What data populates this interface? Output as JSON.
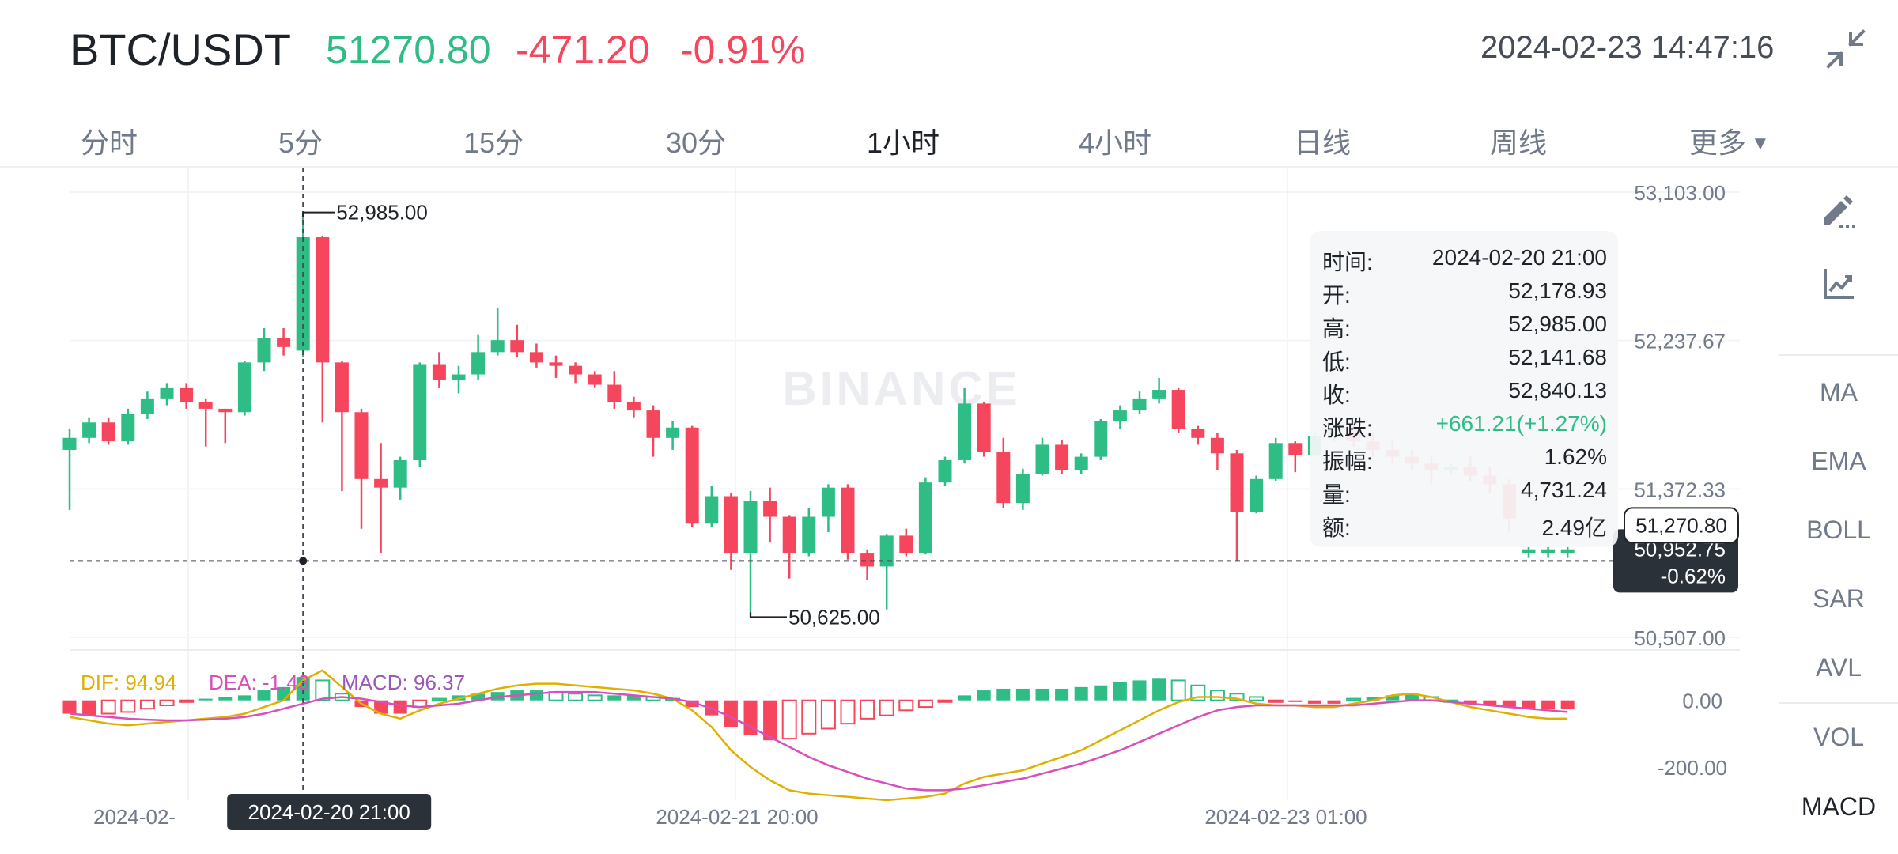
{
  "header": {
    "pair": "BTC/USDT",
    "last_price": "51270.80",
    "change": "-471.20",
    "change_pct": "-0.91%",
    "datetime": "2024-02-23 14:47:16",
    "collapse_icon": "collapse-arrows-icon"
  },
  "tabs": [
    "分时",
    "5分",
    "15分",
    "30分",
    "1小时",
    "4小时",
    "日线",
    "周线",
    "更多"
  ],
  "active_tab": "1小时",
  "side_panel": {
    "tools": [
      "pencil-ruler-icon",
      "indicator-chart-icon"
    ],
    "main_indicators": [
      "MA",
      "EMA",
      "BOLL",
      "SAR",
      "AVL"
    ],
    "sub_indicators": [
      "VOL",
      "MACD"
    ],
    "active_sub": "MACD"
  },
  "tooltip": {
    "rows": [
      {
        "k": "时间:",
        "v": "2024-02-20 21:00"
      },
      {
        "k": "开:",
        "v": "52,178.93"
      },
      {
        "k": "高:",
        "v": "52,985.00"
      },
      {
        "k": "低:",
        "v": "52,141.68"
      },
      {
        "k": "收:",
        "v": "52,840.13"
      },
      {
        "k": "涨跌:",
        "v": "+661.21(+1.27%)"
      },
      {
        "k": "振幅:",
        "v": "1.62%"
      },
      {
        "k": "量:",
        "v": "4,731.24"
      },
      {
        "k": "额:",
        "v": "2.49亿"
      }
    ]
  },
  "chart_data": {
    "type": "candlestick",
    "watermark": "BINANCE",
    "colors": {
      "up": "#2ebd85",
      "down": "#f6465d",
      "dif": "#e0b000",
      "dea": "#d64fbb",
      "macd_label": "#9b59b6"
    },
    "price_axis": {
      "ticks": [
        "53,103.00",
        "52,237.67",
        "51,372.33",
        "50,507.00"
      ],
      "range": [
        50507,
        53103
      ]
    },
    "time_axis": {
      "labels": [
        "2024-02-",
        "2024-02-21 20:00",
        "2024-02-23 01:00"
      ]
    },
    "crosshair": {
      "time_label": "2024-02-20 21:00",
      "price_label": "50,952.75",
      "pct_label": "-0.62%",
      "price": 50952.75
    },
    "last_price_label": "51,270.80",
    "last_price": 51270.8,
    "high_marker": {
      "label": "52,985.00",
      "price": 52985
    },
    "low_marker": {
      "label": "50,625.00",
      "price": 50625
    },
    "candles": [
      [
        51600,
        51670,
        51250,
        51720
      ],
      [
        51670,
        51760,
        51640,
        51790
      ],
      [
        51760,
        51650,
        51630,
        51790
      ],
      [
        51650,
        51810,
        51630,
        51840
      ],
      [
        51810,
        51900,
        51780,
        51940
      ],
      [
        51900,
        51960,
        51860,
        51990
      ],
      [
        51960,
        51880,
        51840,
        51990
      ],
      [
        51880,
        51840,
        51620,
        51900
      ],
      [
        51840,
        51820,
        51640,
        51840
      ],
      [
        51820,
        52110,
        51800,
        52120
      ],
      [
        52110,
        52250,
        52060,
        52310
      ],
      [
        52250,
        52200,
        52150,
        52310
      ],
      [
        52178.93,
        52840.13,
        52141.68,
        52985
      ],
      [
        52840,
        52110,
        51760,
        52850
      ],
      [
        52110,
        51820,
        51360,
        52120
      ],
      [
        51820,
        51430,
        51140,
        51840
      ],
      [
        51430,
        51380,
        51000,
        51640
      ],
      [
        51380,
        51540,
        51310,
        51560
      ],
      [
        51540,
        52100,
        51500,
        52110
      ],
      [
        52100,
        52010,
        51960,
        52170
      ],
      [
        52010,
        52040,
        51930,
        52090
      ],
      [
        52040,
        52170,
        52010,
        52270
      ],
      [
        52170,
        52240,
        52150,
        52430
      ],
      [
        52240,
        52170,
        52140,
        52330
      ],
      [
        52170,
        52110,
        52080,
        52220
      ],
      [
        52110,
        52090,
        52020,
        52150
      ],
      [
        52090,
        52040,
        51990,
        52110
      ],
      [
        52040,
        51980,
        51960,
        52060
      ],
      [
        51980,
        51880,
        51840,
        52060
      ],
      [
        51880,
        51830,
        51790,
        51910
      ],
      [
        51830,
        51670,
        51560,
        51860
      ],
      [
        51670,
        51730,
        51600,
        51770
      ],
      [
        51730,
        51170,
        51150,
        51740
      ],
      [
        51170,
        51330,
        51150,
        51390
      ],
      [
        51330,
        51000,
        50900,
        51350
      ],
      [
        51000,
        51300,
        50625,
        51360
      ],
      [
        51300,
        51210,
        51060,
        51380
      ],
      [
        51210,
        51000,
        50850,
        51220
      ],
      [
        51000,
        51210,
        50980,
        51260
      ],
      [
        51210,
        51380,
        51120,
        51400
      ],
      [
        51380,
        51000,
        50960,
        51400
      ],
      [
        51000,
        50920,
        50840,
        51020
      ],
      [
        50920,
        51100,
        50670,
        51110
      ],
      [
        51100,
        51000,
        50980,
        51140
      ],
      [
        51000,
        51410,
        50990,
        51440
      ],
      [
        51410,
        51540,
        51390,
        51560
      ],
      [
        51540,
        51870,
        51520,
        51960
      ],
      [
        51870,
        51590,
        51560,
        51880
      ],
      [
        51590,
        51290,
        51260,
        51670
      ],
      [
        51290,
        51460,
        51250,
        51490
      ],
      [
        51460,
        51630,
        51450,
        51670
      ],
      [
        51630,
        51480,
        51460,
        51660
      ],
      [
        51480,
        51560,
        51460,
        51580
      ],
      [
        51560,
        51770,
        51540,
        51780
      ],
      [
        51770,
        51830,
        51720,
        51860
      ],
      [
        51830,
        51900,
        51810,
        51940
      ],
      [
        51900,
        51950,
        51870,
        52020
      ],
      [
        51950,
        51720,
        51700,
        51960
      ],
      [
        51720,
        51670,
        51630,
        51740
      ],
      [
        51670,
        51580,
        51480,
        51700
      ],
      [
        51580,
        51240,
        50950,
        51600
      ],
      [
        51240,
        51430,
        51230,
        51450
      ],
      [
        51430,
        51640,
        51420,
        51670
      ],
      [
        51640,
        51570,
        51470,
        51650
      ],
      [
        51570,
        51680,
        51560,
        51700
      ],
      [
        51680,
        51720,
        51650,
        51750
      ],
      [
        51720,
        51650,
        51620,
        51760
      ],
      [
        51650,
        51600,
        51560,
        51700
      ],
      [
        51600,
        51560,
        51520,
        51660
      ],
      [
        51560,
        51520,
        51480,
        51600
      ],
      [
        51520,
        51480,
        51400,
        51560
      ],
      [
        51480,
        51500,
        51460,
        51520
      ],
      [
        51500,
        51450,
        51420,
        51560
      ],
      [
        51450,
        51400,
        51350,
        51500
      ],
      [
        51400,
        51200,
        51120,
        51430
      ],
      [
        51000,
        51020,
        50970,
        51040
      ],
      [
        51000,
        51020,
        50970,
        51040
      ],
      [
        51000,
        51020,
        50970,
        51040
      ]
    ],
    "macd": {
      "dif_label": "DIF: 94.94",
      "dea_label": "DEA: -1.43",
      "macd_label": "MACD: 96.37",
      "ticks": [
        "0.00",
        "-200.00"
      ],
      "range": [
        -300,
        80
      ],
      "dif": [
        -50,
        -60,
        -70,
        -75,
        -70,
        -65,
        -60,
        -55,
        -50,
        -40,
        -20,
        0,
        60,
        90,
        40,
        -10,
        -40,
        -55,
        -30,
        -10,
        5,
        20,
        35,
        45,
        50,
        50,
        45,
        40,
        35,
        30,
        20,
        5,
        -30,
        -80,
        -150,
        -200,
        -240,
        -270,
        -280,
        -285,
        -290,
        -295,
        -300,
        -295,
        -290,
        -280,
        -250,
        -230,
        -220,
        -210,
        -190,
        -170,
        -150,
        -120,
        -90,
        -60,
        -30,
        -5,
        10,
        10,
        5,
        -10,
        -15,
        -15,
        -20,
        -20,
        -10,
        0,
        15,
        20,
        10,
        -5,
        -20,
        -30,
        -40,
        -50,
        -55,
        -55
      ],
      "dea": [
        -40,
        -45,
        -50,
        -55,
        -58,
        -60,
        -60,
        -58,
        -55,
        -50,
        -40,
        -25,
        -10,
        5,
        10,
        5,
        -5,
        -15,
        -20,
        -15,
        -10,
        0,
        10,
        15,
        20,
        25,
        25,
        25,
        20,
        15,
        10,
        5,
        -5,
        -25,
        -50,
        -80,
        -110,
        -140,
        -170,
        -195,
        -215,
        -235,
        -250,
        -265,
        -270,
        -270,
        -265,
        -255,
        -245,
        -235,
        -220,
        -205,
        -190,
        -170,
        -150,
        -125,
        -100,
        -75,
        -50,
        -30,
        -20,
        -15,
        -15,
        -15,
        -15,
        -15,
        -15,
        -10,
        -5,
        0,
        0,
        -5,
        -10,
        -15,
        -20,
        -25,
        -30,
        -35
      ],
      "hist": [
        -40,
        -45,
        -40,
        -35,
        -25,
        -15,
        -5,
        5,
        10,
        15,
        30,
        40,
        70,
        60,
        20,
        -20,
        -40,
        -40,
        -20,
        5,
        15,
        20,
        25,
        30,
        30,
        25,
        20,
        15,
        15,
        15,
        10,
        5,
        -20,
        -45,
        -80,
        -105,
        -120,
        -115,
        -100,
        -85,
        -70,
        -55,
        -45,
        -30,
        -20,
        -5,
        15,
        30,
        35,
        35,
        35,
        35,
        40,
        45,
        55,
        60,
        65,
        60,
        45,
        30,
        20,
        10,
        -5,
        -5,
        -10,
        -10,
        5,
        10,
        15,
        20,
        10,
        0,
        -10,
        -15,
        -20,
        -25,
        -25,
        -25
      ]
    }
  }
}
